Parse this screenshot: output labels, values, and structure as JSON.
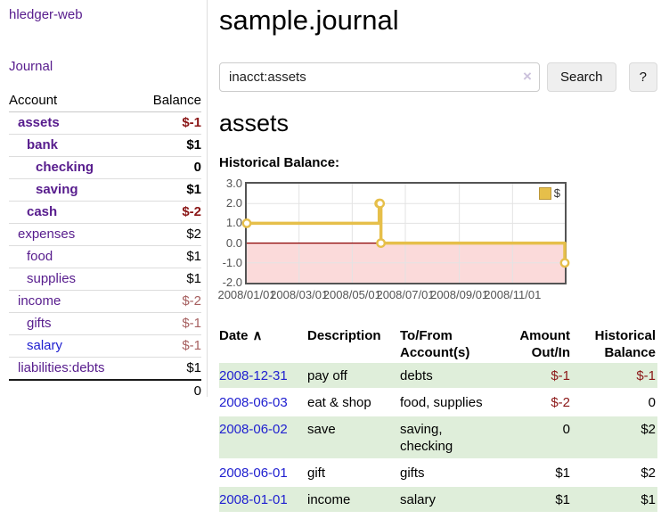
{
  "app": {
    "brand": "hledger-web"
  },
  "sidebar": {
    "journal_link": "Journal",
    "accounts": {
      "account_header": "Account",
      "balance_header": "Balance",
      "rows": [
        {
          "name": "assets",
          "balance": "$-1",
          "depth": 1,
          "emphasized": true,
          "negative": true,
          "link_color": "purple"
        },
        {
          "name": "bank",
          "balance": "$1",
          "depth": 2,
          "emphasized": true,
          "negative": false,
          "link_color": "purple"
        },
        {
          "name": "checking",
          "balance": "0",
          "depth": 3,
          "emphasized": true,
          "negative": false,
          "link_color": "purple"
        },
        {
          "name": "saving",
          "balance": "$1",
          "depth": 3,
          "emphasized": true,
          "negative": false,
          "link_color": "purple"
        },
        {
          "name": "cash",
          "balance": "$-2",
          "depth": 2,
          "emphasized": true,
          "negative": true,
          "link_color": "purple"
        },
        {
          "name": "expenses",
          "balance": "$2",
          "depth": 1,
          "emphasized": false,
          "negative": false,
          "link_color": "purple"
        },
        {
          "name": "food",
          "balance": "$1",
          "depth": 2,
          "emphasized": false,
          "negative": false,
          "link_color": "purple"
        },
        {
          "name": "supplies",
          "balance": "$1",
          "depth": 2,
          "emphasized": false,
          "negative": false,
          "link_color": "purple"
        },
        {
          "name": "income",
          "balance": "$-2",
          "depth": 1,
          "emphasized": false,
          "negative": true,
          "link_color": "purple"
        },
        {
          "name": "gifts",
          "balance": "$-1",
          "depth": 2,
          "emphasized": false,
          "negative": true,
          "link_color": "purple"
        },
        {
          "name": "salary",
          "balance": "$-1",
          "depth": 2,
          "emphasized": false,
          "negative": true,
          "link_color": "blue"
        },
        {
          "name": "liabilities:debts",
          "balance": "$1",
          "depth": 1,
          "emphasized": false,
          "negative": false,
          "link_color": "purple"
        }
      ],
      "total": "0"
    }
  },
  "header": {
    "title": "sample.journal"
  },
  "search": {
    "value": "inacct:assets",
    "clear_icon": "×",
    "button_label": "Search",
    "help_label": "?"
  },
  "section": {
    "title": "assets"
  },
  "chart_data": {
    "type": "line",
    "step": true,
    "title": "Historical Balance:",
    "x_range": [
      "2008-01-01",
      "2008-12-31"
    ],
    "ylim": [
      -2,
      3
    ],
    "y_ticks": [
      3,
      2,
      1,
      0,
      -1,
      -2
    ],
    "x_ticks": [
      {
        "date": "2008-01-01",
        "label": "2008/01/01"
      },
      {
        "date": "2008-03-01",
        "label": "2008/03/01"
      },
      {
        "date": "2008-05-01",
        "label": "2008/05/01"
      },
      {
        "date": "2008-07-01",
        "label": "2008/07/01"
      },
      {
        "date": "2008-09-01",
        "label": "2008/09/01"
      },
      {
        "date": "2008-11-01",
        "label": "2008/11/01"
      }
    ],
    "series": [
      {
        "name": "$",
        "color": "#e6bf4a",
        "points": [
          [
            "2008-01-01",
            1
          ],
          [
            "2008-06-01",
            2
          ],
          [
            "2008-06-02",
            2
          ],
          [
            "2008-06-03",
            0
          ],
          [
            "2008-12-31",
            -1
          ]
        ]
      }
    ],
    "legend": {
      "label": "$",
      "position": "top-right"
    },
    "grid": true,
    "negative_region_fill": "#fbdada",
    "zero_line_color": "#8b0000"
  },
  "transactions": {
    "headers": {
      "date": "Date",
      "sort_indicator": "∧",
      "description": "Description",
      "to_from": "To/From Account(s)",
      "amount": "Amount Out/In",
      "balance": "Historical Balance"
    },
    "rows": [
      {
        "date": "2008-12-31",
        "description": "pay off",
        "accounts": "debts",
        "amount": "$-1",
        "amount_negative": true,
        "balance": "$-1",
        "balance_negative": true,
        "shaded": true
      },
      {
        "date": "2008-06-03",
        "description": "eat & shop",
        "accounts": "food, supplies",
        "amount": "$-2",
        "amount_negative": true,
        "balance": "0",
        "balance_negative": false,
        "shaded": false
      },
      {
        "date": "2008-06-02",
        "description": "save",
        "accounts": "saving,\nchecking",
        "amount": "0",
        "amount_negative": false,
        "balance": "$2",
        "balance_negative": false,
        "shaded": true
      },
      {
        "date": "2008-06-01",
        "description": "gift",
        "accounts": "gifts",
        "amount": "$1",
        "amount_negative": false,
        "balance": "$2",
        "balance_negative": false,
        "shaded": false
      },
      {
        "date": "2008-01-01",
        "description": "income",
        "accounts": "salary",
        "amount": "$1",
        "amount_negative": false,
        "balance": "$1",
        "balance_negative": false,
        "shaded": true
      }
    ]
  },
  "colors": {
    "link_purple": "#571c8d",
    "link_blue": "#2020d0",
    "negative_strong": "#8b1717",
    "negative_soft": "#a65f5f",
    "row_green": "#dfeeda",
    "chart_line_gold": "#e6bf4a",
    "chart_negative_fill": "#fbdada",
    "chart_zero_line": "#8b0000"
  }
}
